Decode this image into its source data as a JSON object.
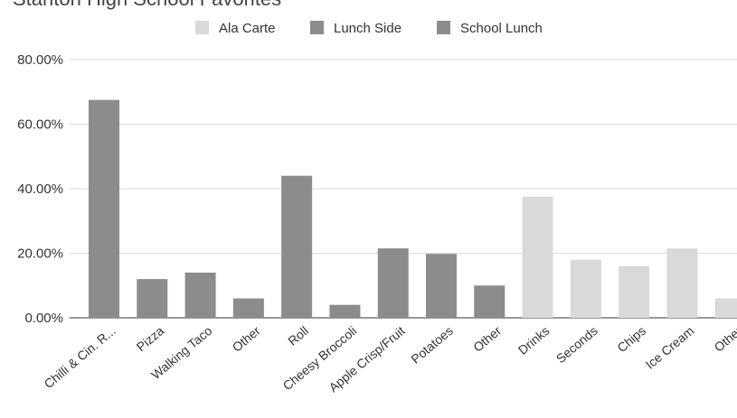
{
  "chart_data": {
    "type": "bar",
    "title": "Stanton High School Favorites",
    "xlabel": "",
    "ylabel": "",
    "ylim": [
      0,
      80
    ],
    "yticks": [
      "0.00%",
      "20.00%",
      "40.00%",
      "60.00%",
      "80.00%"
    ],
    "legend_position": "top",
    "grid": true,
    "categories": [
      "Chilli & Cin. R...",
      "Pizza",
      "Walking Taco",
      "Other",
      "Roll",
      "Cheesy Broccoli",
      "Apple Crisp/Fruit",
      "Potatoes",
      "Other",
      "Drinks",
      "Seconds",
      "Chips",
      "Ice Cream",
      "Other"
    ],
    "series": [
      {
        "name": "Ala Carte",
        "color": "#d9d9d9",
        "values": [
          null,
          null,
          null,
          null,
          null,
          null,
          null,
          null,
          null,
          37.5,
          18,
          16,
          21.5,
          6
        ]
      },
      {
        "name": "Lunch Side",
        "color": "#8c8c8c",
        "values": [
          null,
          null,
          null,
          null,
          44,
          4,
          21.5,
          19.8,
          10,
          null,
          null,
          null,
          null,
          null
        ]
      },
      {
        "name": "School Lunch",
        "color": "#8c8c8c",
        "values": [
          67.5,
          12,
          14,
          6,
          null,
          null,
          null,
          null,
          null,
          null,
          null,
          null,
          null,
          null
        ]
      }
    ]
  }
}
